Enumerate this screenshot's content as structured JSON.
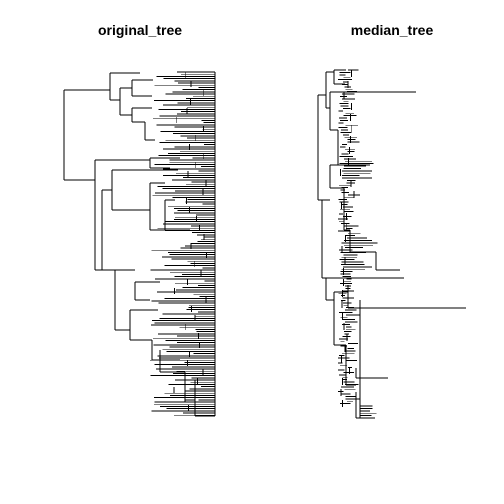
{
  "panels": [
    {
      "title": "original_tree"
    },
    {
      "title": "median_tree"
    }
  ],
  "colors": {
    "background": "#ffffff",
    "branches": "#000000"
  }
}
